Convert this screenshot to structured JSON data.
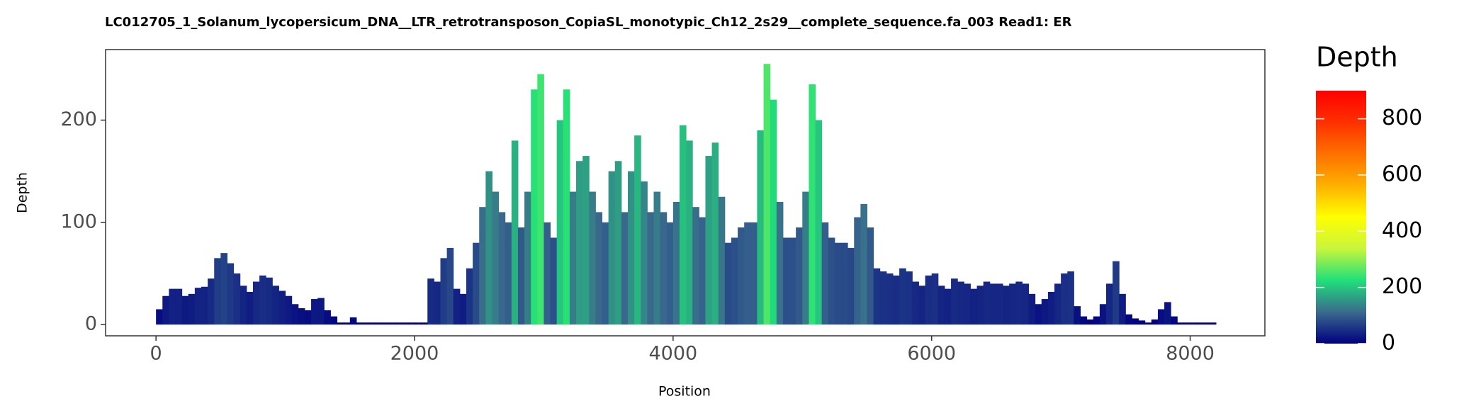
{
  "chart_data": {
    "type": "coverage",
    "title": "LC012705_1_Solanum_lycopersicum_DNA__LTR_retrotransposon_CopiaSL_monotypic_Ch12_2s29__complete_sequence.fa_003   Read1: ER",
    "x_label": "Position",
    "y_label": "Depth",
    "x": [
      0,
      50,
      100,
      150,
      200,
      250,
      300,
      350,
      400,
      450,
      500,
      550,
      600,
      650,
      700,
      750,
      800,
      850,
      900,
      950,
      1000,
      1050,
      1100,
      1150,
      1200,
      1250,
      1300,
      1350,
      1400,
      1450,
      1500,
      1550,
      1600,
      1650,
      1700,
      1750,
      1800,
      1850,
      1900,
      1950,
      2000,
      2050,
      2100,
      2150,
      2200,
      2250,
      2300,
      2350,
      2400,
      2450,
      2500,
      2550,
      2600,
      2650,
      2700,
      2750,
      2800,
      2850,
      2900,
      2950,
      3000,
      3050,
      3100,
      3150,
      3200,
      3250,
      3300,
      3350,
      3400,
      3450,
      3500,
      3550,
      3600,
      3650,
      3700,
      3750,
      3800,
      3850,
      3900,
      3950,
      4000,
      4050,
      4100,
      4150,
      4200,
      4250,
      4300,
      4350,
      4400,
      4450,
      4500,
      4550,
      4600,
      4650,
      4700,
      4750,
      4800,
      4850,
      4900,
      4950,
      5000,
      5050,
      5100,
      5150,
      5200,
      5250,
      5300,
      5350,
      5400,
      5450,
      5500,
      5550,
      5600,
      5650,
      5700,
      5750,
      5800,
      5850,
      5900,
      5950,
      6000,
      6050,
      6100,
      6150,
      6200,
      6250,
      6300,
      6350,
      6400,
      6450,
      6500,
      6550,
      6600,
      6650,
      6700,
      6750,
      6800,
      6850,
      6900,
      6950,
      7000,
      7050,
      7100,
      7150,
      7200,
      7250,
      7300,
      7350,
      7400,
      7450,
      7500,
      7550,
      7600,
      7650,
      7700,
      7750,
      7800,
      7850,
      7900,
      7950,
      8000,
      8050,
      8100,
      8150
    ],
    "values": [
      15,
      28,
      35,
      35,
      28,
      30,
      36,
      37,
      45,
      65,
      70,
      60,
      50,
      38,
      32,
      42,
      48,
      46,
      38,
      33,
      28,
      20,
      16,
      14,
      25,
      26,
      14,
      8,
      2,
      2,
      7,
      2,
      2,
      2,
      2,
      2,
      2,
      2,
      2,
      2,
      2,
      2,
      45,
      42,
      65,
      75,
      35,
      30,
      55,
      80,
      115,
      150,
      130,
      110,
      100,
      180,
      95,
      130,
      230,
      245,
      100,
      85,
      200,
      230,
      130,
      160,
      165,
      130,
      110,
      100,
      150,
      160,
      110,
      150,
      185,
      140,
      110,
      130,
      110,
      100,
      120,
      195,
      180,
      115,
      105,
      165,
      178,
      125,
      80,
      85,
      95,
      100,
      100,
      190,
      255,
      220,
      120,
      85,
      85,
      95,
      130,
      235,
      200,
      100,
      85,
      80,
      80,
      75,
      105,
      118,
      95,
      55,
      52,
      50,
      48,
      55,
      52,
      42,
      38,
      48,
      50,
      38,
      35,
      45,
      42,
      40,
      35,
      38,
      42,
      40,
      40,
      38,
      40,
      42,
      40,
      30,
      20,
      25,
      32,
      40,
      50,
      52,
      18,
      8,
      5,
      8,
      20,
      40,
      62,
      30,
      10,
      6,
      4,
      2,
      5,
      15,
      22,
      8,
      2,
      2,
      2,
      2,
      2,
      2
    ],
    "xlim": [
      -390,
      8578
    ],
    "xticks": [
      0,
      2000,
      4000,
      6000,
      8000
    ],
    "ylim": [
      -11,
      269
    ],
    "yticks": [
      0,
      100,
      200
    ],
    "grid": false,
    "colorbar": {
      "title": "Depth",
      "lim": [
        0,
        900
      ],
      "ticks": [
        0,
        200,
        400,
        600,
        800
      ],
      "colors": [
        "#00007f",
        "#3a6a8c",
        "#20e07a",
        "#c8f53c",
        "#ffff00",
        "#ffb000",
        "#ff7000",
        "#ff3000",
        "#ff0000"
      ]
    }
  }
}
